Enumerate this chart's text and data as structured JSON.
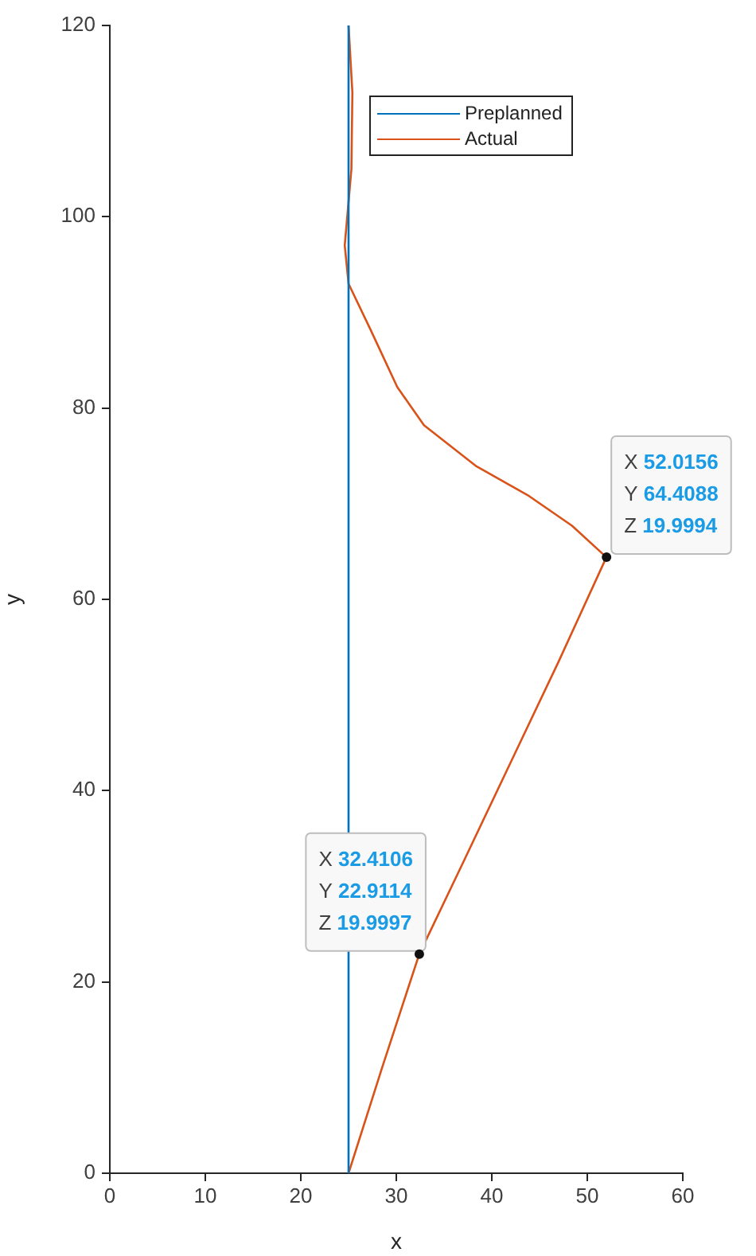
{
  "chart_data": {
    "type": "line",
    "xlabel": "x",
    "ylabel": "y",
    "xlim": [
      0,
      60
    ],
    "xticks": [
      0,
      10,
      20,
      30,
      40,
      50,
      60
    ],
    "ylim": [
      0,
      120
    ],
    "yticks": [
      0,
      20,
      40,
      60,
      80,
      100,
      120
    ],
    "grid": false,
    "legend": "top right",
    "marker": "none",
    "line_style": "solid",
    "series": [
      {
        "name": "Preplanned",
        "color": "#0072bd",
        "x": [
          25,
          25
        ],
        "values": [
          0,
          120
        ]
      },
      {
        "name": "Actual",
        "color": "#d95319",
        "x": [
          25,
          28.5,
          32.4,
          37,
          42,
          47,
          52,
          48.4,
          43.9,
          38.4,
          32.9,
          30.1,
          27.3,
          25,
          24.6,
          25.3,
          25.4,
          25
        ],
        "values": [
          0,
          11,
          22.9,
          32.5,
          43,
          53.5,
          64.4,
          67.7,
          70.8,
          73.9,
          78.2,
          82.2,
          88.2,
          93,
          97,
          105,
          113,
          120
        ]
      }
    ],
    "annotations": [
      {
        "text": "X 32.4106\nY 22.9114\nZ 19.9997",
        "x": 32.4106,
        "y": 22.9114
      },
      {
        "text": "X 52.0156\nY 64.4088\nZ 19.9994",
        "x": 52.0156,
        "y": 64.4088
      }
    ]
  }
}
